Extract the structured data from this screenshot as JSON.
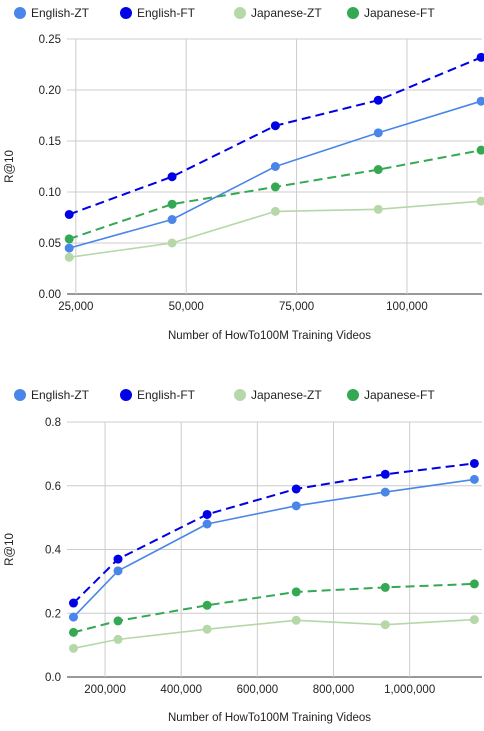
{
  "chart_data": [
    {
      "type": "line",
      "title": "",
      "xlabel": "Number of HowTo100M Training Videos",
      "ylabel": "R@10",
      "xlim": [
        23000,
        117000
      ],
      "ylim": [
        0,
        0.25
      ],
      "xticks": [
        25000,
        50000,
        75000,
        100000
      ],
      "xtick_labels": [
        "25,000",
        "50,000",
        "75,000",
        "100,000"
      ],
      "yticks": [
        0,
        0.05,
        0.1,
        0.15,
        0.2,
        0.25
      ],
      "ytick_labels": [
        "0.00",
        "0.05",
        "0.10",
        "0.15",
        "0.20",
        "0.25"
      ],
      "grid": true,
      "legend_position": "top",
      "x": [
        23500,
        46800,
        70200,
        93500,
        116800
      ],
      "series": [
        {
          "name": "English-ZT",
          "color": "#4a86e8",
          "dashed": false,
          "values": [
            0.045,
            0.073,
            0.125,
            0.158,
            0.189
          ]
        },
        {
          "name": "English-FT",
          "color": "#0000e6",
          "dashed": true,
          "values": [
            0.078,
            0.115,
            0.165,
            0.19,
            0.232
          ]
        },
        {
          "name": "Japanese-ZT",
          "color": "#b6d7a8",
          "dashed": false,
          "values": [
            0.036,
            0.05,
            0.081,
            0.083,
            0.091
          ]
        },
        {
          "name": "Japanese-FT",
          "color": "#34a853",
          "dashed": true,
          "values": [
            0.054,
            0.088,
            0.105,
            0.122,
            0.141
          ]
        }
      ]
    },
    {
      "type": "line",
      "title": "",
      "xlabel": "Number of HowTo100M Training Videos",
      "ylabel": "R@10",
      "xlim": [
        100000,
        1190000
      ],
      "ylim": [
        0,
        0.8
      ],
      "xticks": [
        200000,
        400000,
        600000,
        800000,
        1000000
      ],
      "xtick_labels": [
        "200,000",
        "400,000",
        "600,000",
        "800,000",
        "1,000,000"
      ],
      "yticks": [
        0,
        0.2,
        0.4,
        0.6,
        0.8
      ],
      "ytick_labels": [
        "0.0",
        "0.2",
        "0.4",
        "0.6",
        "0.8"
      ],
      "grid": true,
      "legend_position": "top",
      "x": [
        117000,
        234000,
        468000,
        702000,
        936000,
        1170000
      ],
      "series": [
        {
          "name": "English-ZT",
          "color": "#4a86e8",
          "dashed": false,
          "values": [
            0.188,
            0.333,
            0.48,
            0.537,
            0.58,
            0.62
          ]
        },
        {
          "name": "English-FT",
          "color": "#0000e6",
          "dashed": true,
          "values": [
            0.232,
            0.37,
            0.51,
            0.59,
            0.636,
            0.67
          ]
        },
        {
          "name": "Japanese-ZT",
          "color": "#b6d7a8",
          "dashed": false,
          "values": [
            0.09,
            0.118,
            0.15,
            0.178,
            0.164,
            0.18
          ]
        },
        {
          "name": "Japanese-FT",
          "color": "#34a853",
          "dashed": true,
          "values": [
            0.14,
            0.176,
            0.225,
            0.267,
            0.281,
            0.292
          ]
        }
      ]
    }
  ]
}
